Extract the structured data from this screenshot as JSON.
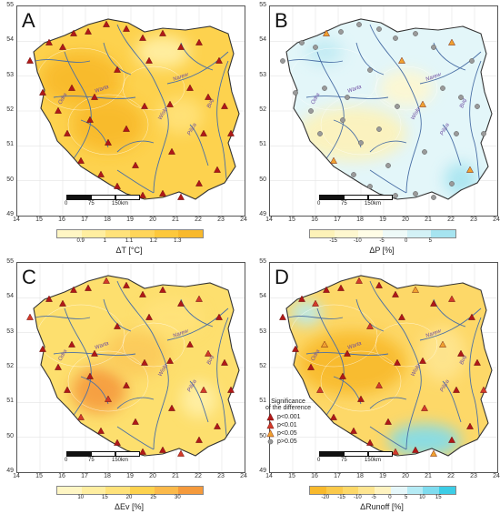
{
  "panels": [
    {
      "letter": "A",
      "colorbar_title": "ΔT [°C]",
      "colorbar_ticks": [
        "0.9",
        "1",
        "1.1",
        "1.2",
        "1.3"
      ],
      "colorbar_colors": [
        "#fff6c4",
        "#ffeea0",
        "#ffe27a",
        "#ffd55a",
        "#fdc83c",
        "#f8b92c"
      ],
      "base_color": "#fdd24e",
      "blobs": [
        {
          "color": "#f8b92c"
        },
        {
          "color": "#f8b92c"
        },
        {
          "color": "#ffe27a"
        },
        {
          "color": "#fff0a8"
        }
      ]
    },
    {
      "letter": "B",
      "colorbar_title": "ΔP [%]",
      "colorbar_ticks": [
        "-15",
        "-10",
        "-5",
        "0",
        "5"
      ],
      "colorbar_colors": [
        "#fdf2b8",
        "#fef7cf",
        "#fffde6",
        "#eefaf8",
        "#d3f1f6",
        "#a6e4f0"
      ],
      "base_color": "#e3f6f9",
      "blobs": [
        {
          "color": "#fdf2b8"
        },
        {
          "color": "#fef7cf"
        },
        {
          "color": "#a6e4f0"
        },
        {
          "color": "#bfeaf3"
        }
      ]
    },
    {
      "letter": "C",
      "colorbar_title": "ΔEv [%]",
      "colorbar_ticks": [
        "10",
        "15",
        "20",
        "25",
        "30"
      ],
      "colorbar_colors": [
        "#fff6c4",
        "#ffeea0",
        "#ffe27a",
        "#fdd24e",
        "#fbb94a",
        "#f59a3c"
      ],
      "base_color": "#fddf6e",
      "blobs": [
        {
          "color": "#f59a3c"
        },
        {
          "color": "#ffe27a"
        },
        {
          "color": "#fbc95a"
        },
        {
          "color": "#fff0a8"
        }
      ]
    },
    {
      "letter": "D",
      "colorbar_title": "ΔRunoff [%]",
      "colorbar_ticks": [
        "-20",
        "-15",
        "-10",
        "-5",
        "0",
        "5",
        "10",
        "15"
      ],
      "colorbar_colors": [
        "#f8b92c",
        "#fbc94a",
        "#fdd868",
        "#fee590",
        "#fff3c0",
        "#e6f7fa",
        "#b5ebf5",
        "#7fdcef",
        "#3ccde6"
      ],
      "base_color": "#fdd868",
      "blobs": [
        {
          "color": "#f8b92c"
        },
        {
          "color": "#fee590"
        },
        {
          "color": "#7fdcef"
        },
        {
          "color": "#b5ebf5"
        }
      ]
    }
  ],
  "axes": {
    "lat_ticks": [
      "55",
      "54",
      "53",
      "52",
      "51",
      "50",
      "49"
    ],
    "lon_ticks": [
      "14",
      "15",
      "16",
      "17",
      "18",
      "19",
      "20",
      "21",
      "22",
      "23",
      "24"
    ]
  },
  "scale_bar": {
    "labels": [
      "0",
      "75",
      "150km"
    ]
  },
  "rivers": {
    "labels": [
      "Wisła",
      "Warta",
      "Odra",
      "Bug",
      "Narew",
      "Pilica"
    ]
  },
  "legend": {
    "title_line1": "Significance",
    "title_line2": "of the difference",
    "items": [
      {
        "label": "p<0.001",
        "color": "#b01818"
      },
      {
        "label": "p<0.01",
        "color": "#d23a2a"
      },
      {
        "label": "p<0.05",
        "color": "#f0a030"
      },
      {
        "label": "p>0.05",
        "color": "#9a9a9a"
      }
    ]
  }
}
